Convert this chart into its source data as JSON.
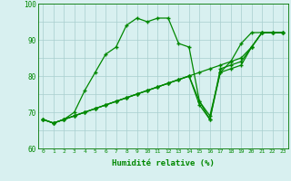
{
  "xlabel": "Humidité relative (%)",
  "x": [
    0,
    1,
    2,
    3,
    4,
    5,
    6,
    7,
    8,
    9,
    10,
    11,
    12,
    13,
    14,
    15,
    16,
    17,
    18,
    19,
    20,
    21,
    22,
    23
  ],
  "line_jagged": [
    68,
    67,
    68,
    70,
    76,
    81,
    86,
    88,
    94,
    96,
    95,
    96,
    96,
    89,
    88,
    73,
    69,
    81,
    84,
    89,
    92,
    92,
    92,
    92
  ],
  "line_diag1": [
    68,
    67,
    68,
    69,
    70,
    71,
    72,
    73,
    74,
    75,
    76,
    77,
    78,
    79,
    80,
    81,
    82,
    83,
    84,
    85,
    88,
    92,
    92,
    92
  ],
  "line_diag2": [
    68,
    67,
    68,
    69,
    70,
    71,
    72,
    73,
    74,
    75,
    76,
    77,
    78,
    79,
    80,
    73,
    68,
    82,
    83,
    84,
    88,
    92,
    92,
    92
  ],
  "line_diag3": [
    68,
    67,
    68,
    69,
    70,
    71,
    72,
    73,
    74,
    75,
    76,
    77,
    78,
    79,
    80,
    72,
    68,
    81,
    82,
    83,
    88,
    92,
    92,
    92
  ],
  "ylim": [
    60,
    100
  ],
  "ytick_vals": [
    60,
    65,
    70,
    75,
    80,
    85,
    90,
    95,
    100
  ],
  "ytick_labels": [
    "60",
    "",
    "70",
    "",
    "80",
    "",
    "90",
    "",
    "100"
  ],
  "line_color": "#008800",
  "bg_color": "#d8f0f0",
  "grid_color": "#a8cece",
  "spine_color": "#007700"
}
